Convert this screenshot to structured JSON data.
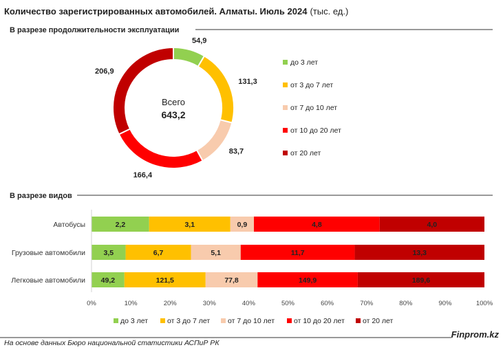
{
  "title": "Количество зарегистрированных автомобилей. Алматы. Июль 2024",
  "title_unit": "(тыс. ед.)",
  "section1_title": "В разрезе продолжительности эксплуатации",
  "section2_title": "В разрезе видов",
  "footer_source": "На основе данных Бюро национальной статистики АСПиР РК",
  "footer_brand": "Finprom.kz",
  "colors": {
    "до 3 лет": "#92d050",
    "от 3 до 7 лет": "#ffc000",
    "от 7 до 10 лет": "#f8cbad",
    "от 10 до 20 лет": "#ff0000",
    "от 20 лет": "#c00000"
  },
  "chart_data": [
    {
      "type": "pie",
      "center_label": "Всего",
      "center_value": "643,2",
      "categories": [
        "до 3 лет",
        "от 3 до 7 лет",
        "от 7 до 10 лет",
        "от 10 до 20 лет",
        "от 20 лет"
      ],
      "values": [
        54.9,
        131.3,
        83.7,
        166.4,
        206.9
      ],
      "value_labels": [
        "54,9",
        "131,3",
        "83,7",
        "166,4",
        "206,9"
      ],
      "legend_position": "right"
    },
    {
      "type": "bar",
      "orientation": "horizontal",
      "stacked": "percent",
      "categories": [
        "Автобусы",
        "Грузовые автомобили",
        "Легковые автомобили"
      ],
      "series": [
        {
          "name": "до 3 лет",
          "values": [
            2.2,
            3.5,
            49.2
          ],
          "labels": [
            "2,2",
            "3,5",
            "49,2"
          ]
        },
        {
          "name": "от 3 до 7 лет",
          "values": [
            3.1,
            6.7,
            121.5
          ],
          "labels": [
            "3,1",
            "6,7",
            "121,5"
          ]
        },
        {
          "name": "от 7 до 10 лет",
          "values": [
            0.9,
            5.1,
            77.8
          ],
          "labels": [
            "0,9",
            "5,1",
            "77,8"
          ]
        },
        {
          "name": "от 10 до 20 лет",
          "values": [
            4.8,
            11.7,
            149.9
          ],
          "labels": [
            "4,8",
            "11,7",
            "149,9"
          ]
        },
        {
          "name": "от 20 лет",
          "values": [
            4.0,
            13.3,
            189.6
          ],
          "labels": [
            "4,0",
            "13,3",
            "189,6"
          ]
        }
      ],
      "x_ticks": [
        "0%",
        "10%",
        "20%",
        "30%",
        "40%",
        "50%",
        "60%",
        "70%",
        "80%",
        "90%",
        "100%"
      ],
      "xlim": [
        0,
        100
      ],
      "grid": false,
      "legend_position": "bottom"
    }
  ]
}
